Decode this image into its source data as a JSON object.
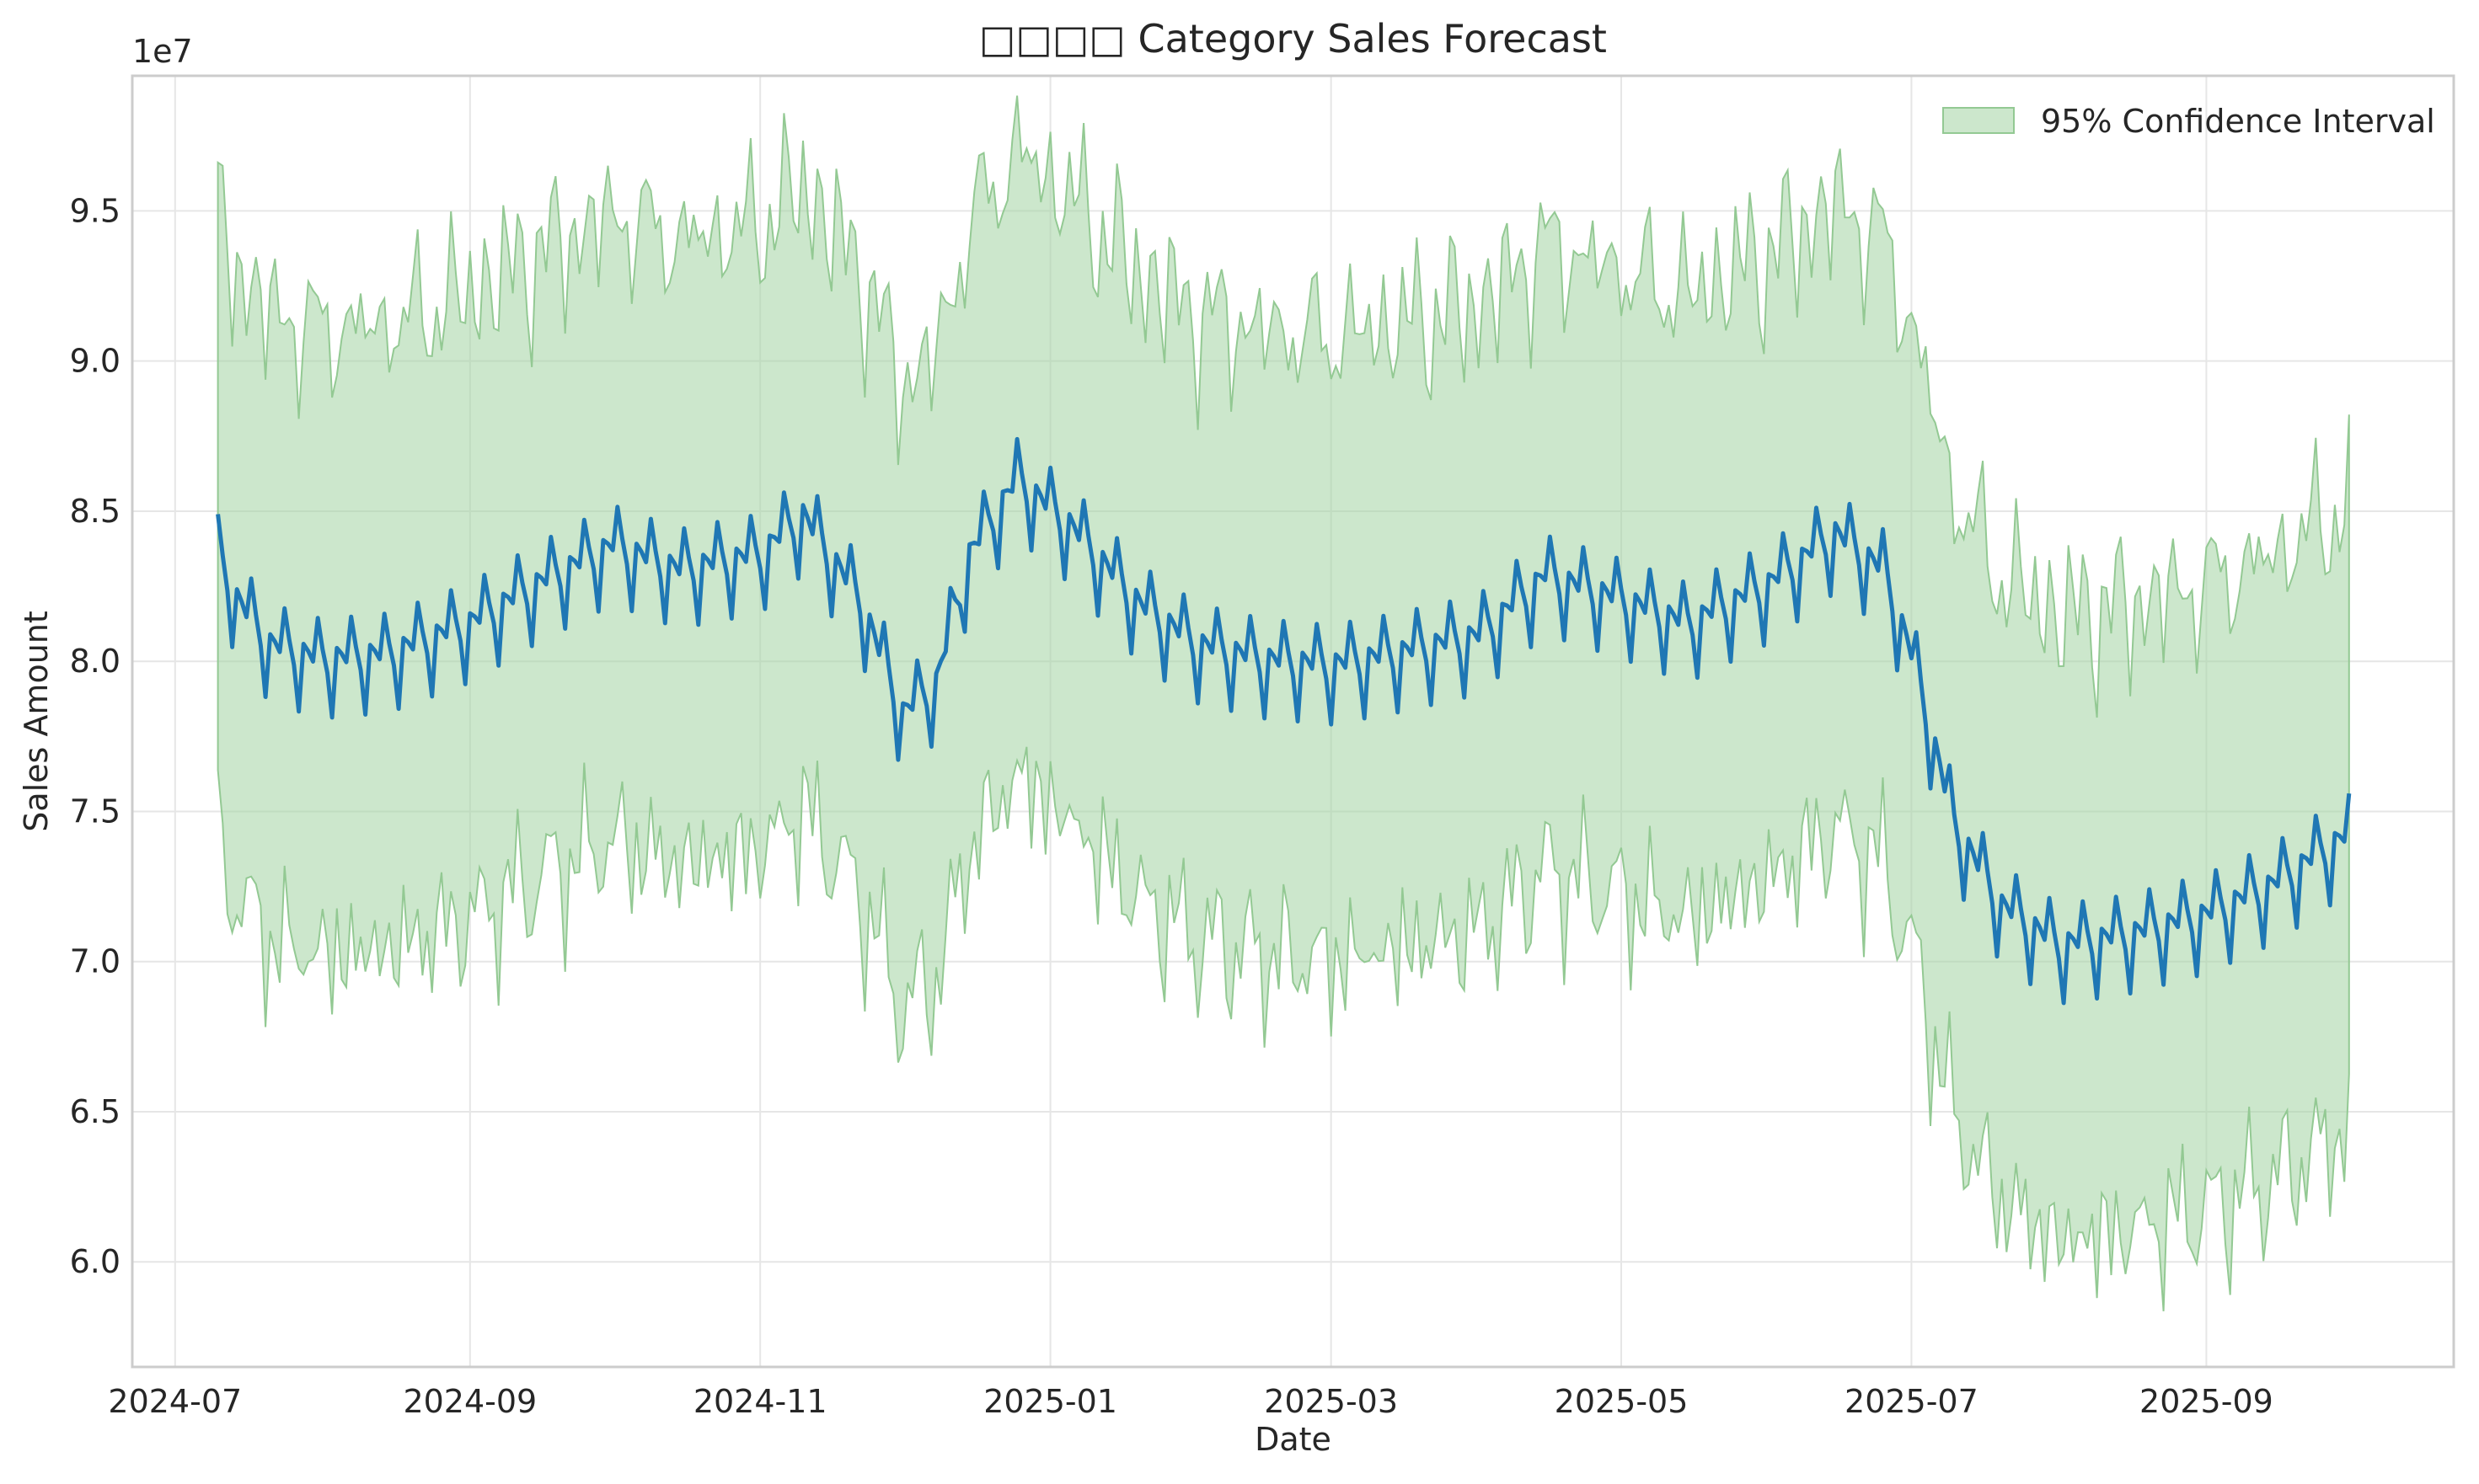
{
  "chart_data": {
    "type": "line",
    "title": "□□□□ Category Sales Forecast",
    "xlabel": "Date",
    "ylabel": "Sales Amount",
    "y_offset_label": "1e7",
    "xlim": [
      "2024-06-22",
      "2025-10-23"
    ],
    "ylim": [
      5.65,
      9.95
    ],
    "grid": true,
    "legend_position": "top-right",
    "x_ticks": [
      "2024-07",
      "2024-09",
      "2024-11",
      "2025-01",
      "2025-03",
      "2025-05",
      "2025-07",
      "2025-09"
    ],
    "y_ticks": [
      "6.0",
      "6.5",
      "7.0",
      "7.5",
      "8.0",
      "8.5",
      "9.0",
      "9.5"
    ],
    "y_tick_values": [
      6.0,
      6.5,
      7.0,
      7.5,
      8.0,
      8.5,
      9.0,
      9.5
    ],
    "legend": [
      "95% Confidence Interval"
    ],
    "x_start": "2024-07-10",
    "x_end": "2025-10-01",
    "forecast_anchors": [
      [
        "2024-07-10",
        8.35
      ],
      [
        "2024-07-14",
        8.2
      ],
      [
        "2024-07-21",
        8.05
      ],
      [
        "2024-08-01",
        8.0
      ],
      [
        "2024-08-15",
        8.02
      ],
      [
        "2024-09-01",
        8.12
      ],
      [
        "2024-09-15",
        8.25
      ],
      [
        "2024-10-01",
        8.38
      ],
      [
        "2024-10-15",
        8.3
      ],
      [
        "2024-11-01",
        8.35
      ],
      [
        "2024-11-10",
        8.48
      ],
      [
        "2024-11-22",
        8.2
      ],
      [
        "2024-12-01",
        7.82
      ],
      [
        "2024-12-08",
        7.92
      ],
      [
        "2024-12-15",
        8.35
      ],
      [
        "2024-12-25",
        8.6
      ],
      [
        "2025-01-05",
        8.45
      ],
      [
        "2025-01-20",
        8.18
      ],
      [
        "2025-02-01",
        8.05
      ],
      [
        "2025-02-15",
        8.0
      ],
      [
        "2025-03-01",
        7.98
      ],
      [
        "2025-03-15",
        8.02
      ],
      [
        "2025-04-01",
        8.08
      ],
      [
        "2025-04-15",
        8.28
      ],
      [
        "2025-05-01",
        8.2
      ],
      [
        "2025-05-15",
        8.12
      ],
      [
        "2025-06-01",
        8.25
      ],
      [
        "2025-06-15",
        8.42
      ],
      [
        "2025-06-25",
        8.3
      ],
      [
        "2025-07-01",
        8.02
      ],
      [
        "2025-07-10",
        7.45
      ],
      [
        "2025-07-20",
        7.18
      ],
      [
        "2025-08-01",
        7.05
      ],
      [
        "2025-08-15",
        7.08
      ],
      [
        "2025-09-01",
        7.15
      ],
      [
        "2025-09-15",
        7.25
      ],
      [
        "2025-10-01",
        7.42
      ]
    ],
    "weekly_pattern": [
      0.14,
      0.04,
      -0.04,
      -0.19,
      0.04,
      0.02,
      -0.01
    ],
    "upper_offset": 1.1,
    "lower_offset": 0.98,
    "colors": {
      "forecast_line": "#1f77b4",
      "interval_fill": "#a3d3a3",
      "interval_edge": "#93c993",
      "grid": "#e6e6e6",
      "spine": "#cccccc"
    }
  }
}
